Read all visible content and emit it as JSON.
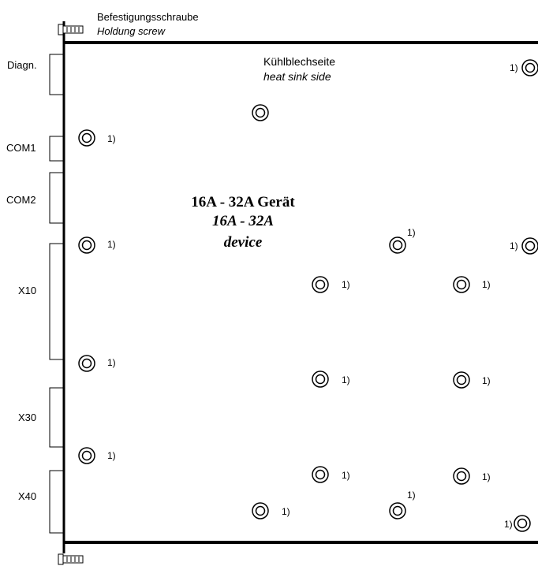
{
  "screw_label": {
    "de": "Befestigungsschraube",
    "en": "Holdung screw"
  },
  "heat_sink_label": {
    "de": "Kühlblechseite",
    "en": "heat sink side"
  },
  "device_label": {
    "de": "16A - 32A Gerät",
    "en_line1": "16A - 32A",
    "en_line2": "device"
  },
  "connectors": {
    "diagn": "Diagn.",
    "com1": "COM1",
    "com2": "COM2",
    "x10": "X10",
    "x30": "X30",
    "x40": "X40"
  },
  "note_marker": "1)"
}
